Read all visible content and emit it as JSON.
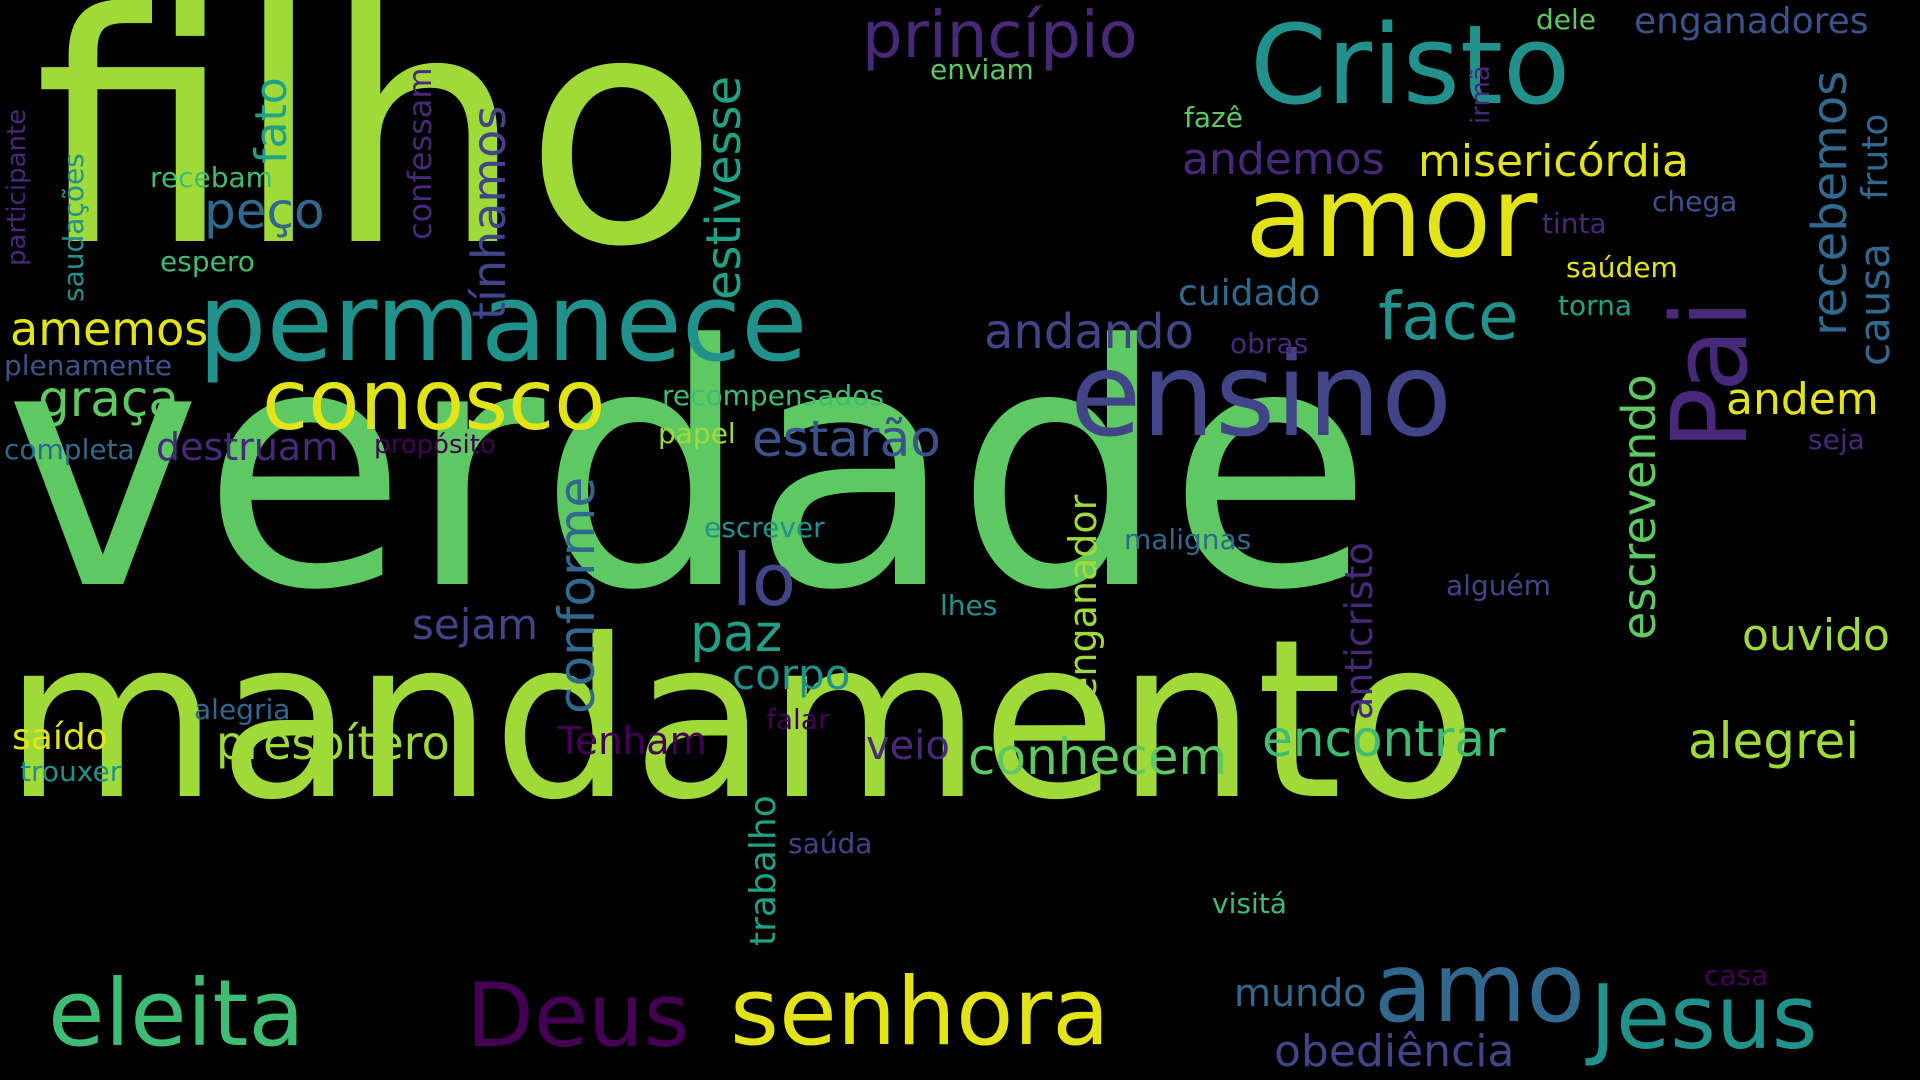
{
  "words": {
    "filho": "filho",
    "verdade": "verdade",
    "mandamento": "mandamento",
    "cristo": "Cristo",
    "permanece": "permanece",
    "amor": "amor",
    "ensino": "ensino",
    "pai": "Pai",
    "conosco": "conosco",
    "senhora": "senhora",
    "eleita": "eleita",
    "deus": "Deus",
    "amo": "amo",
    "jesus": "Jesus",
    "principio": "princípio",
    "enganadores": "enganadores",
    "dele": "dele",
    "enviam": "enviam",
    "misericordia": "misericórdia",
    "andemos": "andemos",
    "face": "face",
    "andando": "andando",
    "cuidado": "cuidado",
    "estivesse": "estivesse",
    "tinhamos": "tínhamos",
    "confessam": "confessam",
    "fato": "fato",
    "peco": "peço",
    "recebam": "recebam",
    "espero": "espero",
    "saudacoes": "saudações",
    "participante": "participante",
    "amemos": "amemos",
    "graca": "graça",
    "plenamente": "plenamente",
    "completa": "completa",
    "destruam": "destruam",
    "proposito": "propósito",
    "recompensados": "recompensados",
    "papel": "papel",
    "estarao": "estarão",
    "recebemos": "recebemos",
    "causa": "causa",
    "fruto": "fruto",
    "irma": "irmã",
    "chega": "chega",
    "tinta": "tinta",
    "saudem": "saúdem",
    "torna": "torna",
    "obras": "obras",
    "faze": "fazê",
    "escrevendo": "escrevendo",
    "andem": "andem",
    "seja": "seja",
    "lo": "lo",
    "paz": "paz",
    "corpo": "corpo",
    "conforme": "conforme",
    "sejam": "sejam",
    "escrever": "escrever",
    "malignas": "malignas",
    "lhes": "lhes",
    "enganador": "enganador",
    "anticristo": "anticristo",
    "alguem": "alguém",
    "ouvido": "ouvido",
    "alegria": "alegria",
    "saido": "saído",
    "trouxer": "trouxer",
    "presbitero": "presbítero",
    "tenham": "Tenham",
    "falar": "falar",
    "veio": "veio",
    "conhecem": "conhecem",
    "encontrar": "encontrar",
    "alegrei": "alegrei",
    "trabalho": "trabalho",
    "sauda": "saúda",
    "visita": "visitá",
    "mundo": "mundo",
    "casa": "casa",
    "obediencia": "obediência"
  },
  "palette": {
    "background": "#000000",
    "lime": "#a0da39",
    "green": "#5ec962",
    "yellow": "#e2e418",
    "teal": "#21918c",
    "cyan_teal": "#1fa187",
    "mid_green": "#3fbc73",
    "blue": "#3b528b",
    "slate": "#31688e",
    "indigo": "#414487",
    "dark_purple": "#440154",
    "purple": "#482878"
  }
}
